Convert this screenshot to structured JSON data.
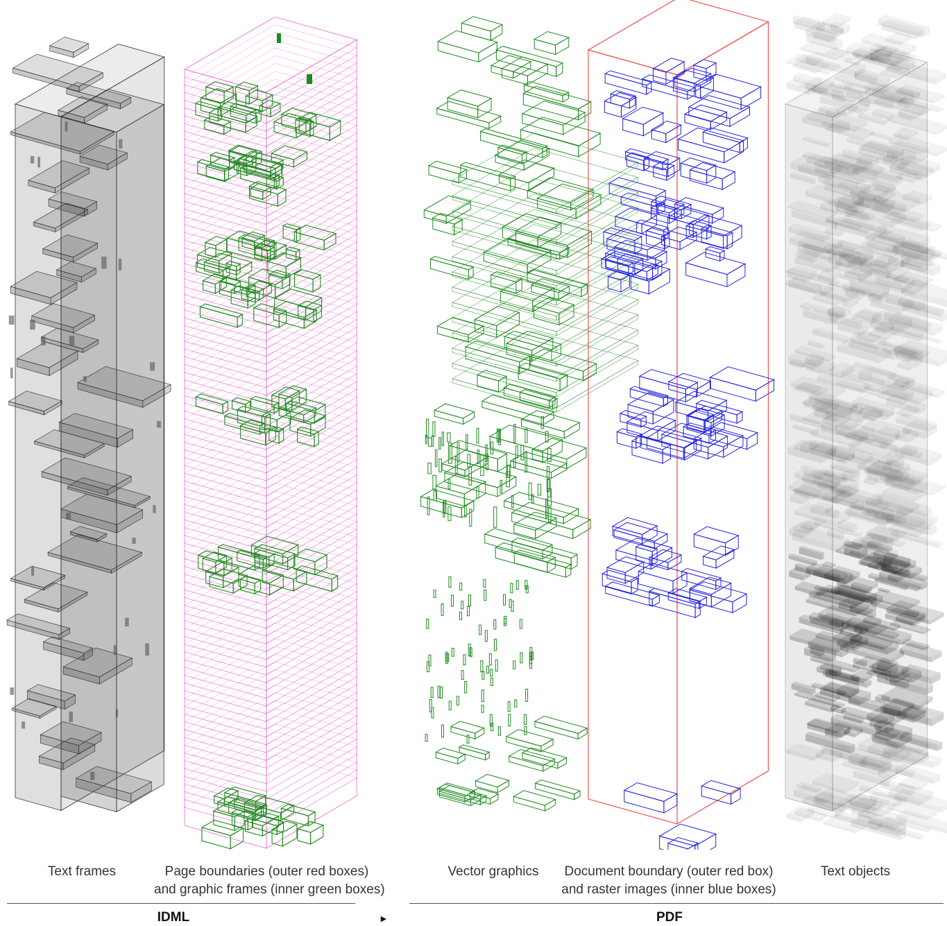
{
  "columns": [
    {
      "id": "text-frames",
      "label_lines": [
        "Text frames"
      ]
    },
    {
      "id": "page-boundaries",
      "label_lines": [
        "Page boundaries (outer red boxes)",
        "and graphic frames (inner green boxes)"
      ]
    },
    {
      "id": "vector-graphics",
      "label_lines": [
        "Vector graphics"
      ]
    },
    {
      "id": "document-boundary",
      "label_lines": [
        "Document boundary (outer red box)",
        "and raster images (inner blue boxes)"
      ]
    },
    {
      "id": "text-objects",
      "label_lines": [
        "Text objects"
      ]
    }
  ],
  "groups": {
    "left": "IDML",
    "right": "PDF"
  },
  "arrow_glyph": "►",
  "colors": {
    "frame_gray": "#3a3a3a",
    "page_pink": "#ee66cc",
    "graphic_green": "#1e8a1e",
    "doc_red": "#ee4444",
    "raster_blue": "#2222dd",
    "text_object_black": "#000000"
  }
}
